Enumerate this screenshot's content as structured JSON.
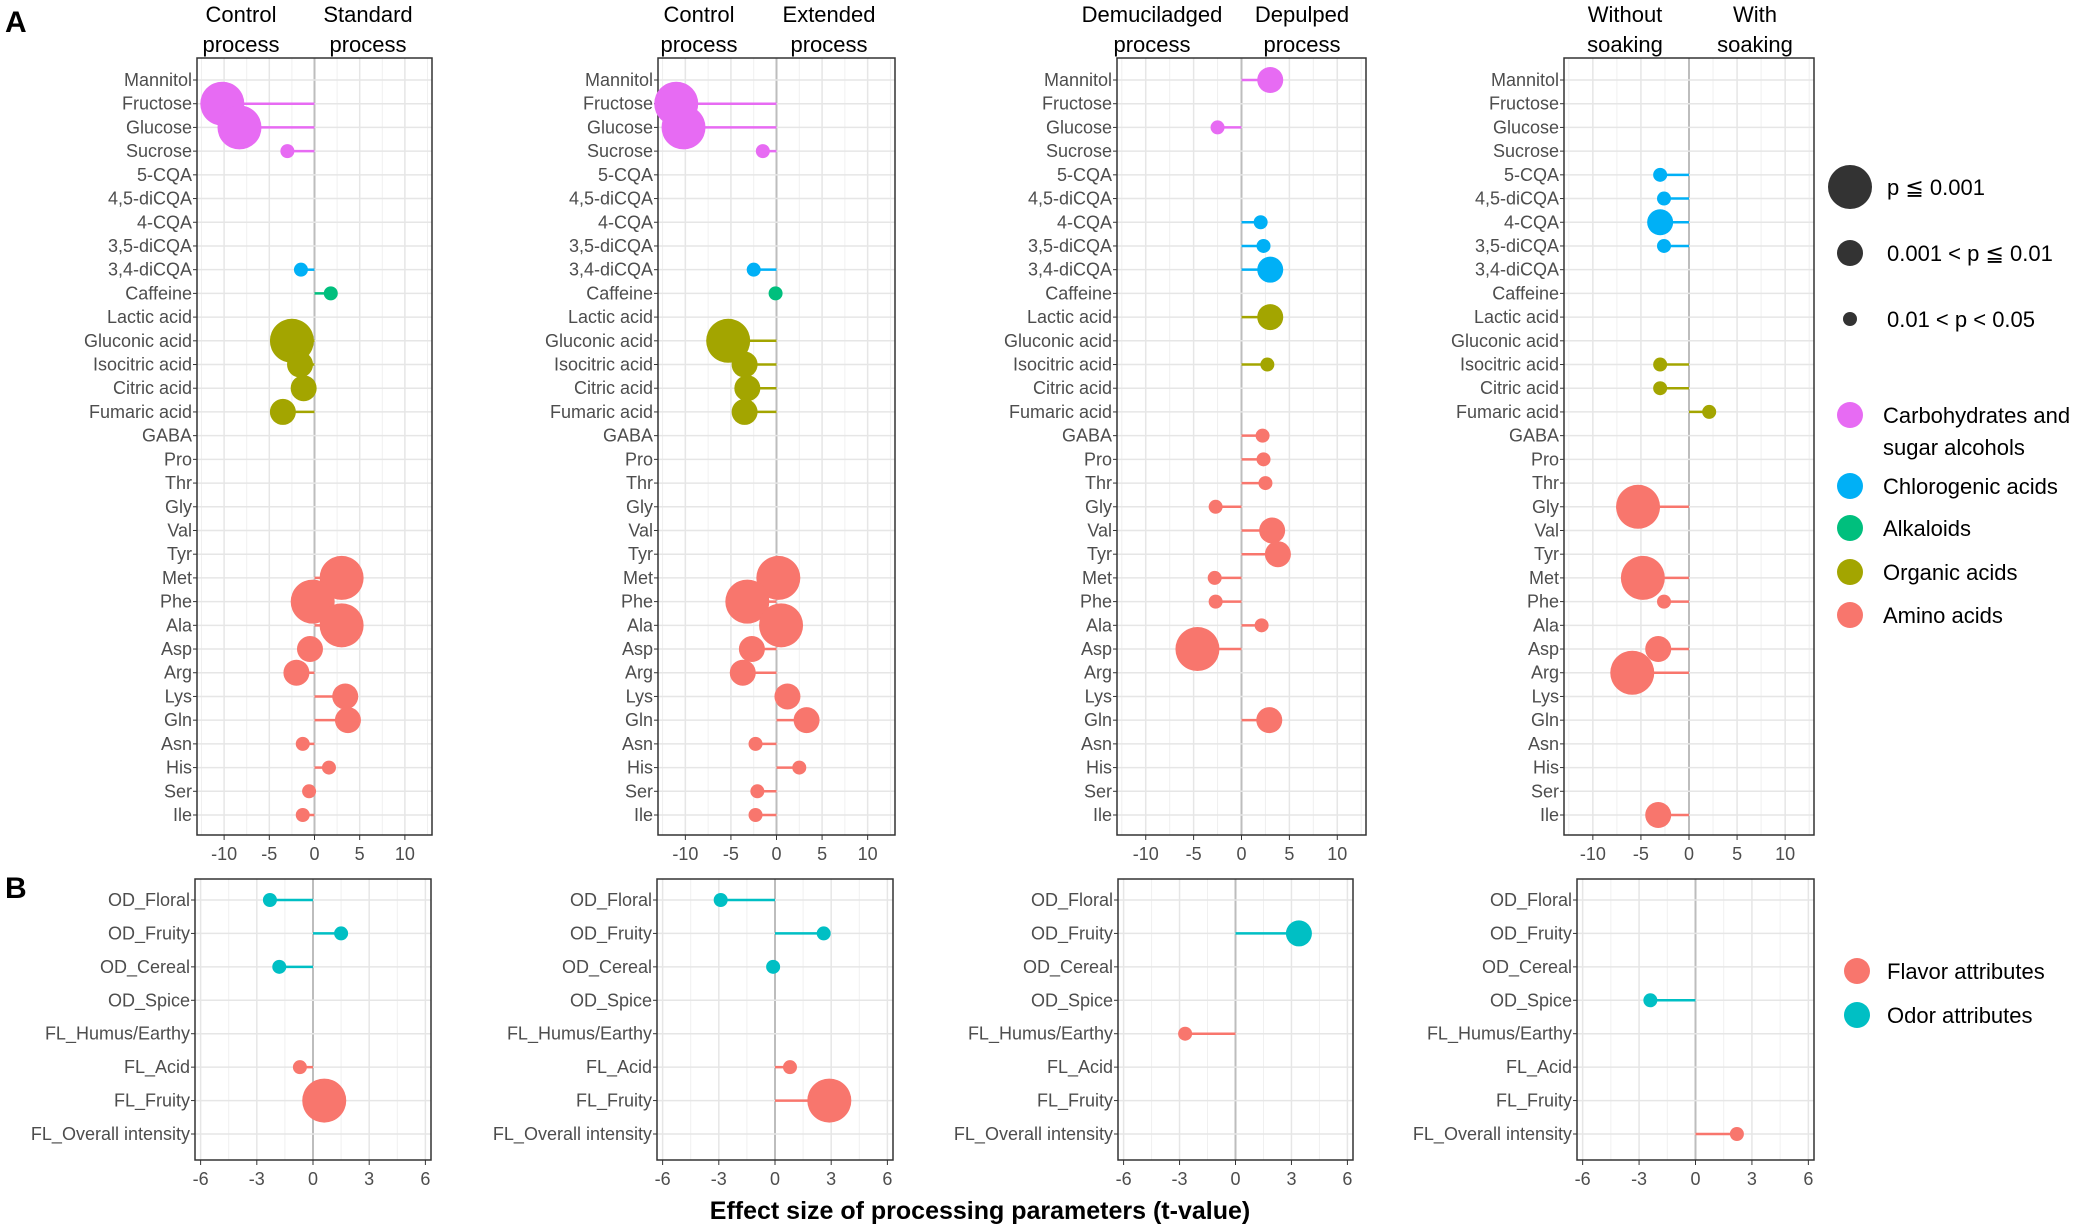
{
  "panel_labels": [
    "A",
    "B"
  ],
  "x_axis_label": "Effect size of processing parameters (t-value)",
  "colors": {
    "Carbohydrates and sugar alcohols": "#E76BF3",
    "Chlorogenic acids": "#00B0F6",
    "Alkaloids": "#00BF7D",
    "Organic acids": "#A3A500",
    "Amino acids": "#F8766D",
    "Flavor attributes": "#F8766D",
    "Odor attributes": "#00BFC4"
  },
  "legend_size": {
    "items": [
      {
        "label": "p ≦ 0.001",
        "size": "large"
      },
      {
        "label": "0.001 < p ≦ 0.01",
        "size": "medium"
      },
      {
        "label": "0.01 < p < 0.05",
        "size": "small"
      }
    ]
  },
  "legend_class": {
    "items": [
      {
        "label": "Carbohydrates and",
        "label2": "sugar alcohols",
        "key": "Carbohydrates and sugar alcohols"
      },
      {
        "label": "Chlorogenic acids",
        "key": "Chlorogenic acids"
      },
      {
        "label": "Alkaloids",
        "key": "Alkaloids"
      },
      {
        "label": "Organic acids",
        "key": "Organic acids"
      },
      {
        "label": "Amino acids",
        "key": "Amino acids"
      }
    ]
  },
  "legend_attr": {
    "items": [
      {
        "label": "Flavor attributes",
        "key": "Flavor attributes"
      },
      {
        "label": "Odor attributes",
        "key": "Odor attributes"
      }
    ]
  },
  "chart_data": [
    {
      "type": "scatter",
      "panel": "A",
      "headers": [
        [
          "Control",
          "process"
        ],
        [
          "Standard",
          "process"
        ]
      ],
      "xlim": [
        -13,
        13
      ],
      "xticks": [
        -10,
        -5,
        0,
        5,
        10
      ],
      "categories": [
        "Mannitol",
        "Fructose",
        "Glucose",
        "Sucrose",
        "5-CQA",
        "4,5-diCQA",
        "4-CQA",
        "3,5-diCQA",
        "3,4-diCQA",
        "Caffeine",
        "Lactic acid",
        "Gluconic acid",
        "Isocitric acid",
        "Citric acid",
        "Fumaric acid",
        "GABA",
        "Pro",
        "Thr",
        "Gly",
        "Val",
        "Tyr",
        "Met",
        "Phe",
        "Ala",
        "Asp",
        "Arg",
        "Lys",
        "Gln",
        "Asn",
        "His",
        "Ser",
        "Ile"
      ],
      "points": [
        {
          "y": "Fructose",
          "x": -10.2,
          "size": "large",
          "group": "Carbohydrates and sugar alcohols"
        },
        {
          "y": "Glucose",
          "x": -8.3,
          "size": "large",
          "group": "Carbohydrates and sugar alcohols"
        },
        {
          "y": "Sucrose",
          "x": -3.0,
          "size": "small",
          "group": "Carbohydrates and sugar alcohols"
        },
        {
          "y": "3,4-diCQA",
          "x": -1.5,
          "size": "small",
          "group": "Chlorogenic acids"
        },
        {
          "y": "Caffeine",
          "x": 1.8,
          "size": "small",
          "group": "Alkaloids"
        },
        {
          "y": "Gluconic acid",
          "x": -2.5,
          "size": "large",
          "group": "Organic acids"
        },
        {
          "y": "Isocitric acid",
          "x": -1.6,
          "size": "medium",
          "group": "Organic acids"
        },
        {
          "y": "Citric acid",
          "x": -1.2,
          "size": "medium",
          "group": "Organic acids"
        },
        {
          "y": "Fumaric acid",
          "x": -3.5,
          "size": "medium",
          "group": "Organic acids"
        },
        {
          "y": "Met",
          "x": 3.0,
          "size": "large",
          "group": "Amino acids"
        },
        {
          "y": "Phe",
          "x": -0.2,
          "size": "large",
          "group": "Amino acids"
        },
        {
          "y": "Ala",
          "x": 3.0,
          "size": "large",
          "group": "Amino acids"
        },
        {
          "y": "Asp",
          "x": -0.5,
          "size": "medium",
          "group": "Amino acids"
        },
        {
          "y": "Arg",
          "x": -2.0,
          "size": "medium",
          "group": "Amino acids"
        },
        {
          "y": "Lys",
          "x": 3.4,
          "size": "medium",
          "group": "Amino acids"
        },
        {
          "y": "Gln",
          "x": 3.7,
          "size": "medium",
          "group": "Amino acids"
        },
        {
          "y": "Asn",
          "x": -1.3,
          "size": "small",
          "group": "Amino acids"
        },
        {
          "y": "His",
          "x": 1.6,
          "size": "small",
          "group": "Amino acids"
        },
        {
          "y": "Ser",
          "x": -0.6,
          "size": "small",
          "group": "Amino acids"
        },
        {
          "y": "Ile",
          "x": -1.3,
          "size": "small",
          "group": "Amino acids"
        }
      ]
    },
    {
      "type": "scatter",
      "panel": "A",
      "headers": [
        [
          "Control",
          "process"
        ],
        [
          "Extended",
          "process"
        ]
      ],
      "xlim": [
        -13,
        13
      ],
      "xticks": [
        -10,
        -5,
        0,
        5,
        10
      ],
      "categories": [
        "Mannitol",
        "Fructose",
        "Glucose",
        "Sucrose",
        "5-CQA",
        "4,5-diCQA",
        "4-CQA",
        "3,5-diCQA",
        "3,4-diCQA",
        "Caffeine",
        "Lactic acid",
        "Gluconic acid",
        "Isocitric acid",
        "Citric acid",
        "Fumaric acid",
        "GABA",
        "Pro",
        "Thr",
        "Gly",
        "Val",
        "Tyr",
        "Met",
        "Phe",
        "Ala",
        "Asp",
        "Arg",
        "Lys",
        "Gln",
        "Asn",
        "His",
        "Ser",
        "Ile"
      ],
      "points": [
        {
          "y": "Fructose",
          "x": -11.0,
          "size": "large",
          "group": "Carbohydrates and sugar alcohols"
        },
        {
          "y": "Glucose",
          "x": -10.2,
          "size": "large",
          "group": "Carbohydrates and sugar alcohols"
        },
        {
          "y": "Sucrose",
          "x": -1.5,
          "size": "small",
          "group": "Carbohydrates and sugar alcohols"
        },
        {
          "y": "3,4-diCQA",
          "x": -2.5,
          "size": "small",
          "group": "Chlorogenic acids"
        },
        {
          "y": "Caffeine",
          "x": -0.1,
          "size": "small",
          "group": "Alkaloids"
        },
        {
          "y": "Gluconic acid",
          "x": -5.3,
          "size": "large",
          "group": "Organic acids"
        },
        {
          "y": "Isocitric acid",
          "x": -3.5,
          "size": "medium",
          "group": "Organic acids"
        },
        {
          "y": "Citric acid",
          "x": -3.2,
          "size": "medium",
          "group": "Organic acids"
        },
        {
          "y": "Fumaric acid",
          "x": -3.5,
          "size": "medium",
          "group": "Organic acids"
        },
        {
          "y": "Met",
          "x": 0.2,
          "size": "large",
          "group": "Amino acids"
        },
        {
          "y": "Phe",
          "x": -3.2,
          "size": "large",
          "group": "Amino acids"
        },
        {
          "y": "Ala",
          "x": 0.5,
          "size": "large",
          "group": "Amino acids"
        },
        {
          "y": "Asp",
          "x": -2.7,
          "size": "medium",
          "group": "Amino acids"
        },
        {
          "y": "Arg",
          "x": -3.7,
          "size": "medium",
          "group": "Amino acids"
        },
        {
          "y": "Lys",
          "x": 1.2,
          "size": "medium",
          "group": "Amino acids"
        },
        {
          "y": "Gln",
          "x": 3.3,
          "size": "medium",
          "group": "Amino acids"
        },
        {
          "y": "Asn",
          "x": -2.3,
          "size": "small",
          "group": "Amino acids"
        },
        {
          "y": "His",
          "x": 2.5,
          "size": "small",
          "group": "Amino acids"
        },
        {
          "y": "Ser",
          "x": -2.1,
          "size": "small",
          "group": "Amino acids"
        },
        {
          "y": "Ile",
          "x": -2.3,
          "size": "small",
          "group": "Amino acids"
        }
      ]
    },
    {
      "type": "scatter",
      "panel": "A",
      "headers": [
        [
          "Demuciladged",
          "process"
        ],
        [
          "Depulped",
          "process"
        ]
      ],
      "xlim": [
        -13,
        13
      ],
      "xticks": [
        -10,
        -5,
        0,
        5,
        10
      ],
      "categories": [
        "Mannitol",
        "Fructose",
        "Glucose",
        "Sucrose",
        "5-CQA",
        "4,5-diCQA",
        "4-CQA",
        "3,5-diCQA",
        "3,4-diCQA",
        "Caffeine",
        "Lactic acid",
        "Gluconic acid",
        "Isocitric acid",
        "Citric acid",
        "Fumaric acid",
        "GABA",
        "Pro",
        "Thr",
        "Gly",
        "Val",
        "Tyr",
        "Met",
        "Phe",
        "Ala",
        "Asp",
        "Arg",
        "Lys",
        "Gln",
        "Asn",
        "His",
        "Ser",
        "Ile"
      ],
      "points": [
        {
          "y": "Mannitol",
          "x": 3.0,
          "size": "medium",
          "group": "Carbohydrates and sugar alcohols"
        },
        {
          "y": "Glucose",
          "x": -2.5,
          "size": "small",
          "group": "Carbohydrates and sugar alcohols"
        },
        {
          "y": "4-CQA",
          "x": 2.0,
          "size": "small",
          "group": "Chlorogenic acids"
        },
        {
          "y": "3,5-diCQA",
          "x": 2.3,
          "size": "small",
          "group": "Chlorogenic acids"
        },
        {
          "y": "3,4-diCQA",
          "x": 3.0,
          "size": "medium",
          "group": "Chlorogenic acids"
        },
        {
          "y": "Lactic acid",
          "x": 3.0,
          "size": "medium",
          "group": "Organic acids"
        },
        {
          "y": "Isocitric acid",
          "x": 2.7,
          "size": "small",
          "group": "Organic acids"
        },
        {
          "y": "GABA",
          "x": 2.2,
          "size": "small",
          "group": "Amino acids"
        },
        {
          "y": "Pro",
          "x": 2.3,
          "size": "small",
          "group": "Amino acids"
        },
        {
          "y": "Thr",
          "x": 2.5,
          "size": "small",
          "group": "Amino acids"
        },
        {
          "y": "Gly",
          "x": -2.7,
          "size": "small",
          "group": "Amino acids"
        },
        {
          "y": "Val",
          "x": 3.2,
          "size": "medium",
          "group": "Amino acids"
        },
        {
          "y": "Tyr",
          "x": 3.8,
          "size": "medium",
          "group": "Amino acids"
        },
        {
          "y": "Met",
          "x": -2.8,
          "size": "small",
          "group": "Amino acids"
        },
        {
          "y": "Phe",
          "x": -2.7,
          "size": "small",
          "group": "Amino acids"
        },
        {
          "y": "Ala",
          "x": 2.1,
          "size": "small",
          "group": "Amino acids"
        },
        {
          "y": "Asp",
          "x": -4.6,
          "size": "large",
          "group": "Amino acids"
        },
        {
          "y": "Gln",
          "x": 2.9,
          "size": "medium",
          "group": "Amino acids"
        }
      ]
    },
    {
      "type": "scatter",
      "panel": "A",
      "headers": [
        [
          "Without",
          "soaking"
        ],
        [
          "With",
          "soaking"
        ]
      ],
      "xlim": [
        -13,
        13
      ],
      "xticks": [
        -10,
        -5,
        0,
        5,
        10
      ],
      "categories": [
        "Mannitol",
        "Fructose",
        "Glucose",
        "Sucrose",
        "5-CQA",
        "4,5-diCQA",
        "4-CQA",
        "3,5-diCQA",
        "3,4-diCQA",
        "Caffeine",
        "Lactic acid",
        "Gluconic acid",
        "Isocitric acid",
        "Citric acid",
        "Fumaric acid",
        "GABA",
        "Pro",
        "Thr",
        "Gly",
        "Val",
        "Tyr",
        "Met",
        "Phe",
        "Ala",
        "Asp",
        "Arg",
        "Lys",
        "Gln",
        "Asn",
        "His",
        "Ser",
        "Ile"
      ],
      "points": [
        {
          "y": "5-CQA",
          "x": -3.0,
          "size": "small",
          "group": "Chlorogenic acids"
        },
        {
          "y": "4,5-diCQA",
          "x": -2.6,
          "size": "small",
          "group": "Chlorogenic acids"
        },
        {
          "y": "4-CQA",
          "x": -3.0,
          "size": "medium",
          "group": "Chlorogenic acids"
        },
        {
          "y": "3,5-diCQA",
          "x": -2.6,
          "size": "small",
          "group": "Chlorogenic acids"
        },
        {
          "y": "Isocitric acid",
          "x": -3.0,
          "size": "small",
          "group": "Organic acids"
        },
        {
          "y": "Citric acid",
          "x": -3.0,
          "size": "small",
          "group": "Organic acids"
        },
        {
          "y": "Fumaric acid",
          "x": 2.1,
          "size": "small",
          "group": "Organic acids"
        },
        {
          "y": "Gly",
          "x": -5.3,
          "size": "large",
          "group": "Amino acids"
        },
        {
          "y": "Met",
          "x": -4.8,
          "size": "large",
          "group": "Amino acids"
        },
        {
          "y": "Phe",
          "x": -2.6,
          "size": "small",
          "group": "Amino acids"
        },
        {
          "y": "Asp",
          "x": -3.2,
          "size": "medium",
          "group": "Amino acids"
        },
        {
          "y": "Arg",
          "x": -5.9,
          "size": "large",
          "group": "Amino acids"
        },
        {
          "y": "Ile",
          "x": -3.2,
          "size": "medium",
          "group": "Amino acids"
        }
      ]
    },
    {
      "type": "scatter",
      "panel": "B",
      "xlim": [
        -6.3,
        6.3
      ],
      "xticks": [
        -6,
        -3,
        0,
        3,
        6
      ],
      "categories": [
        "OD_Floral",
        "OD_Fruity",
        "OD_Cereal",
        "OD_Spice",
        "FL_Humus/Earthy",
        "FL_Acid",
        "FL_Fruity",
        "FL_Overall intensity"
      ],
      "points": [
        {
          "y": "OD_Floral",
          "x": -2.3,
          "size": "small",
          "group": "Odor attributes"
        },
        {
          "y": "OD_Fruity",
          "x": 1.5,
          "size": "small",
          "group": "Odor attributes"
        },
        {
          "y": "OD_Cereal",
          "x": -1.8,
          "size": "small",
          "group": "Odor attributes"
        },
        {
          "y": "FL_Acid",
          "x": -0.7,
          "size": "small",
          "group": "Flavor attributes"
        },
        {
          "y": "FL_Fruity",
          "x": 0.6,
          "size": "large",
          "group": "Flavor attributes"
        }
      ]
    },
    {
      "type": "scatter",
      "panel": "B",
      "xlim": [
        -6.3,
        6.3
      ],
      "xticks": [
        -6,
        -3,
        0,
        3,
        6
      ],
      "categories": [
        "OD_Floral",
        "OD_Fruity",
        "OD_Cereal",
        "OD_Spice",
        "FL_Humus/Earthy",
        "FL_Acid",
        "FL_Fruity",
        "FL_Overall intensity"
      ],
      "points": [
        {
          "y": "OD_Floral",
          "x": -2.9,
          "size": "small",
          "group": "Odor attributes"
        },
        {
          "y": "OD_Fruity",
          "x": 2.6,
          "size": "small",
          "group": "Odor attributes"
        },
        {
          "y": "OD_Cereal",
          "x": -0.1,
          "size": "small",
          "group": "Odor attributes"
        },
        {
          "y": "FL_Acid",
          "x": 0.8,
          "size": "small",
          "group": "Flavor attributes"
        },
        {
          "y": "FL_Fruity",
          "x": 2.9,
          "size": "large",
          "group": "Flavor attributes"
        }
      ]
    },
    {
      "type": "scatter",
      "panel": "B",
      "xlim": [
        -6.3,
        6.3
      ],
      "xticks": [
        -6,
        -3,
        0,
        3,
        6
      ],
      "categories": [
        "OD_Floral",
        "OD_Fruity",
        "OD_Cereal",
        "OD_Spice",
        "FL_Humus/Earthy",
        "FL_Acid",
        "FL_Fruity",
        "FL_Overall intensity"
      ],
      "points": [
        {
          "y": "OD_Fruity",
          "x": 3.4,
          "size": "medium",
          "group": "Odor attributes"
        },
        {
          "y": "FL_Humus/Earthy",
          "x": -2.7,
          "size": "small",
          "group": "Flavor attributes"
        }
      ]
    },
    {
      "type": "scatter",
      "panel": "B",
      "xlim": [
        -6.3,
        6.3
      ],
      "xticks": [
        -6,
        -3,
        0,
        3,
        6
      ],
      "categories": [
        "OD_Floral",
        "OD_Fruity",
        "OD_Cereal",
        "OD_Spice",
        "FL_Humus/Earthy",
        "FL_Acid",
        "FL_Fruity",
        "FL_Overall intensity"
      ],
      "points": [
        {
          "y": "OD_Spice",
          "x": -2.4,
          "size": "small",
          "group": "Odor attributes"
        },
        {
          "y": "FL_Overall intensity",
          "x": 2.2,
          "size": "small",
          "group": "Flavor attributes"
        }
      ]
    }
  ]
}
